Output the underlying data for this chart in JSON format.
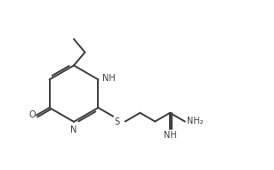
{
  "bg_color": "#ffffff",
  "line_color": "#3d3d3d",
  "text_color": "#3d3d3d",
  "line_width": 1.4,
  "font_size": 7.0,
  "figsize": [
    3.08,
    1.91
  ],
  "dpi": 100,
  "xlim": [
    0.0,
    9.5
  ],
  "ylim": [
    0.8,
    5.5
  ]
}
